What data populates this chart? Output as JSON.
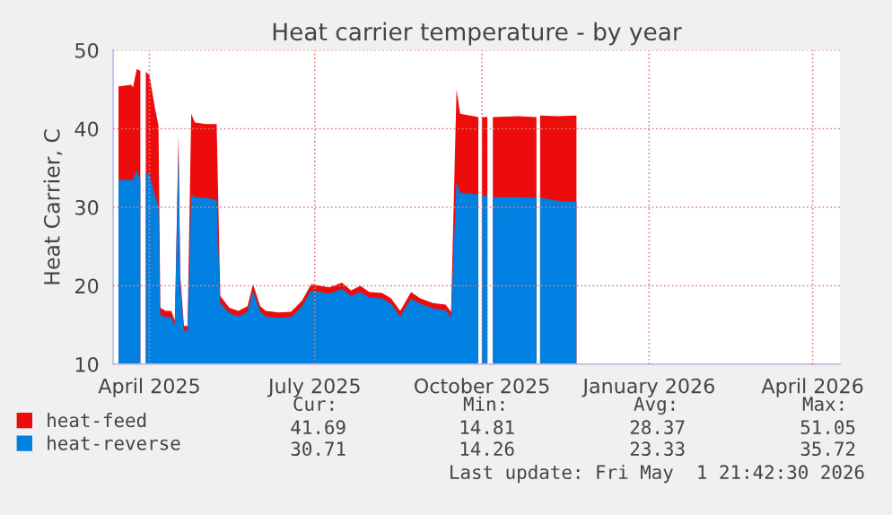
{
  "chart_data": {
    "type": "area",
    "title": "Heat carrier temperature - by year",
    "ylabel": "Heat Carrier, C",
    "x": [
      "2025-03-30",
      "2025-04-06",
      "2025-04-07",
      "2025-04-09",
      "2025-04-11",
      "2025-04-12",
      "2025-04-13",
      "2025-04-14",
      "2025-04-16",
      "2025-04-19",
      "2025-04-21",
      "2025-04-22",
      "2025-04-25",
      "2025-04-28",
      "2025-04-30",
      "2025-05-02",
      "2025-05-03",
      "2025-05-05",
      "2025-05-07",
      "2025-05-09",
      "2025-05-11",
      "2025-05-17",
      "2025-05-23",
      "2025-05-25",
      "2025-05-30",
      "2025-06-04",
      "2025-06-09",
      "2025-06-12",
      "2025-06-16",
      "2025-06-19",
      "2025-06-26",
      "2025-07-03",
      "2025-07-09",
      "2025-07-14",
      "2025-07-19",
      "2025-07-24",
      "2025-07-31",
      "2025-08-05",
      "2025-08-10",
      "2025-08-15",
      "2025-08-22",
      "2025-08-27",
      "2025-09-01",
      "2025-09-07",
      "2025-09-12",
      "2025-09-19",
      "2025-09-26",
      "2025-09-29",
      "2025-10-02",
      "2025-10-04",
      "2025-10-14",
      "2025-10-15",
      "2025-10-16",
      "2025-10-19",
      "2025-10-20",
      "2025-10-22",
      "2025-11-05",
      "2025-11-15",
      "2025-11-16",
      "2025-11-17",
      "2025-11-27",
      "2025-12-07"
    ],
    "series": [
      {
        "name": "heat-feed",
        "color": "#ec0c0c",
        "values": [
          45.4,
          45.6,
          45.3,
          47.6,
          47.4,
          null,
          null,
          47.3,
          46.8,
          42.7,
          40.4,
          17.2,
          16.8,
          16.8,
          15.6,
          39.3,
          21.3,
          14.9,
          14.9,
          41.9,
          40.8,
          40.6,
          40.6,
          18.7,
          17.2,
          16.8,
          17.4,
          20.2,
          17.4,
          16.8,
          16.6,
          16.7,
          18.1,
          20.2,
          20.0,
          19.8,
          20.4,
          19.4,
          20.0,
          19.2,
          19.1,
          18.4,
          16.8,
          19.2,
          18.4,
          17.8,
          17.6,
          16.7,
          45.0,
          41.9,
          41.5,
          null,
          41.5,
          41.5,
          null,
          41.5,
          41.6,
          41.5,
          null,
          41.7,
          41.6,
          41.69
        ]
      },
      {
        "name": "heat-reverse",
        "color": "#0080e0",
        "values": [
          33.5,
          33.5,
          33.5,
          34.7,
          33.5,
          null,
          null,
          34.3,
          34.2,
          31.6,
          30.0,
          16.3,
          16.0,
          16.0,
          15.0,
          37.5,
          20.0,
          14.3,
          14.3,
          31.6,
          31.3,
          31.2,
          30.9,
          17.8,
          16.5,
          16.1,
          16.7,
          19.3,
          16.7,
          16.1,
          15.9,
          16.0,
          17.4,
          19.4,
          19.2,
          19.0,
          19.6,
          18.7,
          19.2,
          18.5,
          18.4,
          17.7,
          16.1,
          18.4,
          17.7,
          17.1,
          16.9,
          16.0,
          33.2,
          31.9,
          31.6,
          null,
          31.5,
          31.5,
          null,
          31.3,
          31.3,
          31.2,
          null,
          31.2,
          30.8,
          30.71
        ]
      }
    ],
    "xlim": [
      "2025-03-27",
      "2026-05-01"
    ],
    "xticks": [
      {
        "value": "2025-04-16",
        "label": "April 2025"
      },
      {
        "value": "2025-07-16",
        "label": "July 2025"
      },
      {
        "value": "2025-10-16",
        "label": "October 2025"
      },
      {
        "value": "2026-01-16",
        "label": "January 2026"
      },
      {
        "value": "2026-04-16",
        "label": "April 2026"
      }
    ],
    "ylim": [
      10,
      50
    ],
    "yticks": [
      10,
      20,
      30,
      40,
      50
    ],
    "grid": true,
    "legend": "bottom",
    "annotations": [
      "Cur:",
      "Min:",
      "Avg:",
      "Max:",
      "41.69",
      "14.81",
      "28.37",
      "51.05",
      "30.71",
      "14.26",
      "23.33",
      "35.72",
      "Last update: Fri May  1 21:42:30 2026"
    ]
  }
}
